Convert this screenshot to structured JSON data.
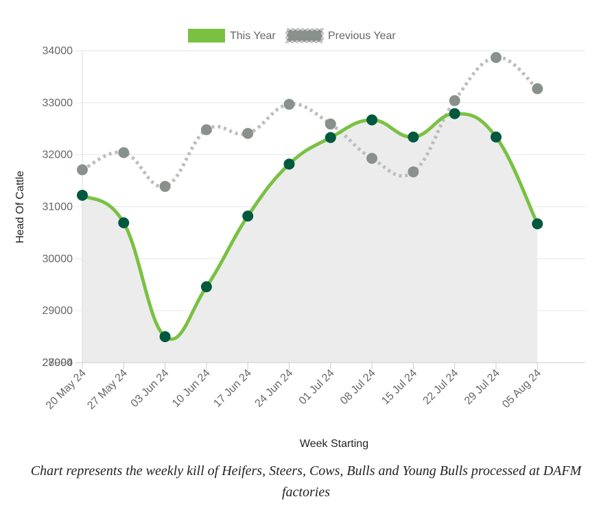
{
  "caption": "Chart represents the weekly kill of Heifers, Steers, Cows, Bulls and Young Bulls processed at DAFM factories",
  "chart_data": {
    "type": "line",
    "title": "",
    "xlabel": "Week Starting",
    "ylabel": "Head Of Cattle",
    "categories": [
      "20 May 24",
      "27 May 24",
      "03 Jun 24",
      "10 Jun 24",
      "17 Jun 24",
      "24 Jun 24",
      "01 Jul 24",
      "08 Jul 24",
      "15 Jul 24",
      "22 Jul 24",
      "29 Jul 24",
      "05 Aug 24"
    ],
    "y_ticks": [
      "34000",
      "33000",
      "32000",
      "31000",
      "30000",
      "29000",
      "28000"
    ],
    "overlapping_tick_label": "27994",
    "ylim": [
      28000,
      34000
    ],
    "grid": true,
    "legend_position": "top-center",
    "series": [
      {
        "name": "This Year",
        "values": [
          31220,
          30690,
          28500,
          29460,
          30820,
          31820,
          32330,
          32670,
          32340,
          32790,
          32340,
          30670
        ],
        "line_color": "#7ac143",
        "point_color": "#00593f",
        "fill_color": "#ececec",
        "style": "solid"
      },
      {
        "name": "Previous Year",
        "values": [
          31710,
          32040,
          31390,
          32480,
          32410,
          32970,
          32590,
          31930,
          31670,
          33040,
          33870,
          33270
        ],
        "line_color": "#bdbdbd",
        "point_color": "#8a918d",
        "style": "dotted"
      }
    ]
  }
}
